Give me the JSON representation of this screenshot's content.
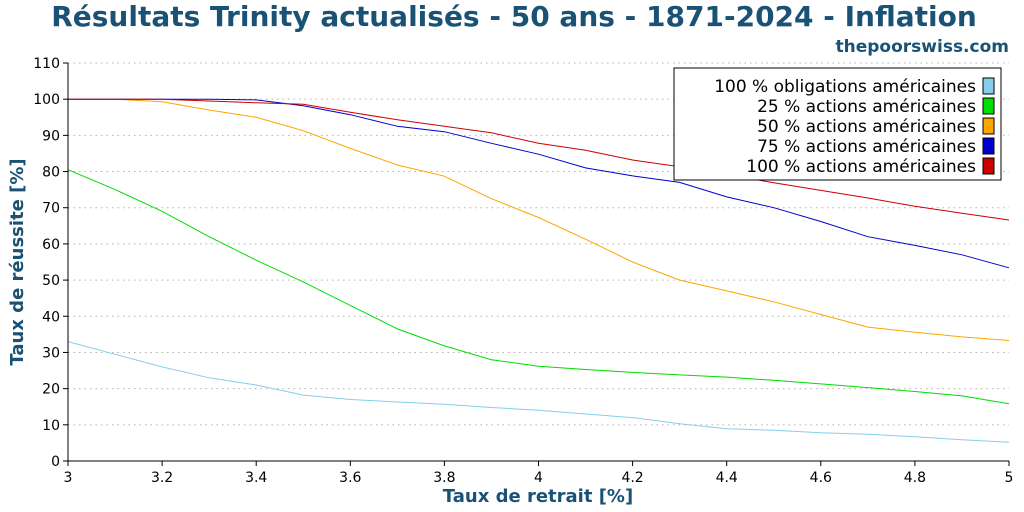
{
  "chart_data": {
    "type": "line",
    "title": "Résultats Trinity actualisés - 50 ans - 1871-2024 - Inflation",
    "credit": "thepoorswiss.com",
    "xlabel": "Taux de retrait [%]",
    "ylabel": "Taux de réussite [%]",
    "xlim": [
      3,
      5
    ],
    "ylim": [
      0,
      110
    ],
    "x_ticks": [
      "3",
      "3.2",
      "3.4",
      "3.6",
      "3.8",
      "4",
      "4.2",
      "4.4",
      "4.6",
      "4.8",
      "5"
    ],
    "y_ticks": [
      "0",
      "10",
      "20",
      "30",
      "40",
      "50",
      "60",
      "70",
      "80",
      "90",
      "100",
      "110"
    ],
    "grid": "horizontal",
    "legend_position": "top-right",
    "x": [
      3.0,
      3.1,
      3.2,
      3.3,
      3.4,
      3.5,
      3.6,
      3.7,
      3.8,
      3.9,
      4.0,
      4.1,
      4.2,
      4.3,
      4.4,
      4.5,
      4.6,
      4.7,
      4.8,
      4.9,
      5.0
    ],
    "series": [
      {
        "name": "100 % obligations américaines",
        "color": "#87ceeb",
        "values": [
          33,
          29.5,
          26,
          23,
          21,
          18.2,
          17,
          16.3,
          15.7,
          14.8,
          14,
          13,
          12,
          10.3,
          8.9,
          8.5,
          7.8,
          7.4,
          6.7,
          5.9,
          5.2
        ]
      },
      {
        "name": "25 % actions américaines",
        "color": "#00dd00",
        "values": [
          80.5,
          75,
          69,
          62,
          55.5,
          49.5,
          43,
          36.5,
          31.8,
          28,
          26.2,
          25.3,
          24.5,
          23.8,
          23.2,
          22.3,
          21.3,
          20.3,
          19.2,
          18,
          15.8
        ]
      },
      {
        "name": "50 % actions américaines",
        "color": "#ffa500",
        "values": [
          100,
          100,
          99.3,
          97,
          95,
          91.3,
          86.4,
          81.8,
          78.7,
          72.5,
          67.3,
          61.3,
          55,
          50,
          47,
          44,
          40.5,
          37,
          35.6,
          34.3,
          33.3
        ]
      },
      {
        "name": "75 % actions américaines",
        "color": "#0000cc",
        "values": [
          100,
          100,
          100,
          100,
          99.8,
          98.2,
          95.7,
          92.5,
          91,
          87.8,
          84.8,
          81,
          78.8,
          77,
          73,
          70,
          66.2,
          62,
          59.6,
          57,
          53.4
        ]
      },
      {
        "name": "100 % actions américaines",
        "color": "#cc0000",
        "values": [
          100,
          100,
          100,
          99.5,
          99,
          98.6,
          96.4,
          94.3,
          92.5,
          90.7,
          87.8,
          85.9,
          83.2,
          81.3,
          79.2,
          76.9,
          74.8,
          72.7,
          70.4,
          68.5,
          66.6
        ]
      }
    ]
  }
}
